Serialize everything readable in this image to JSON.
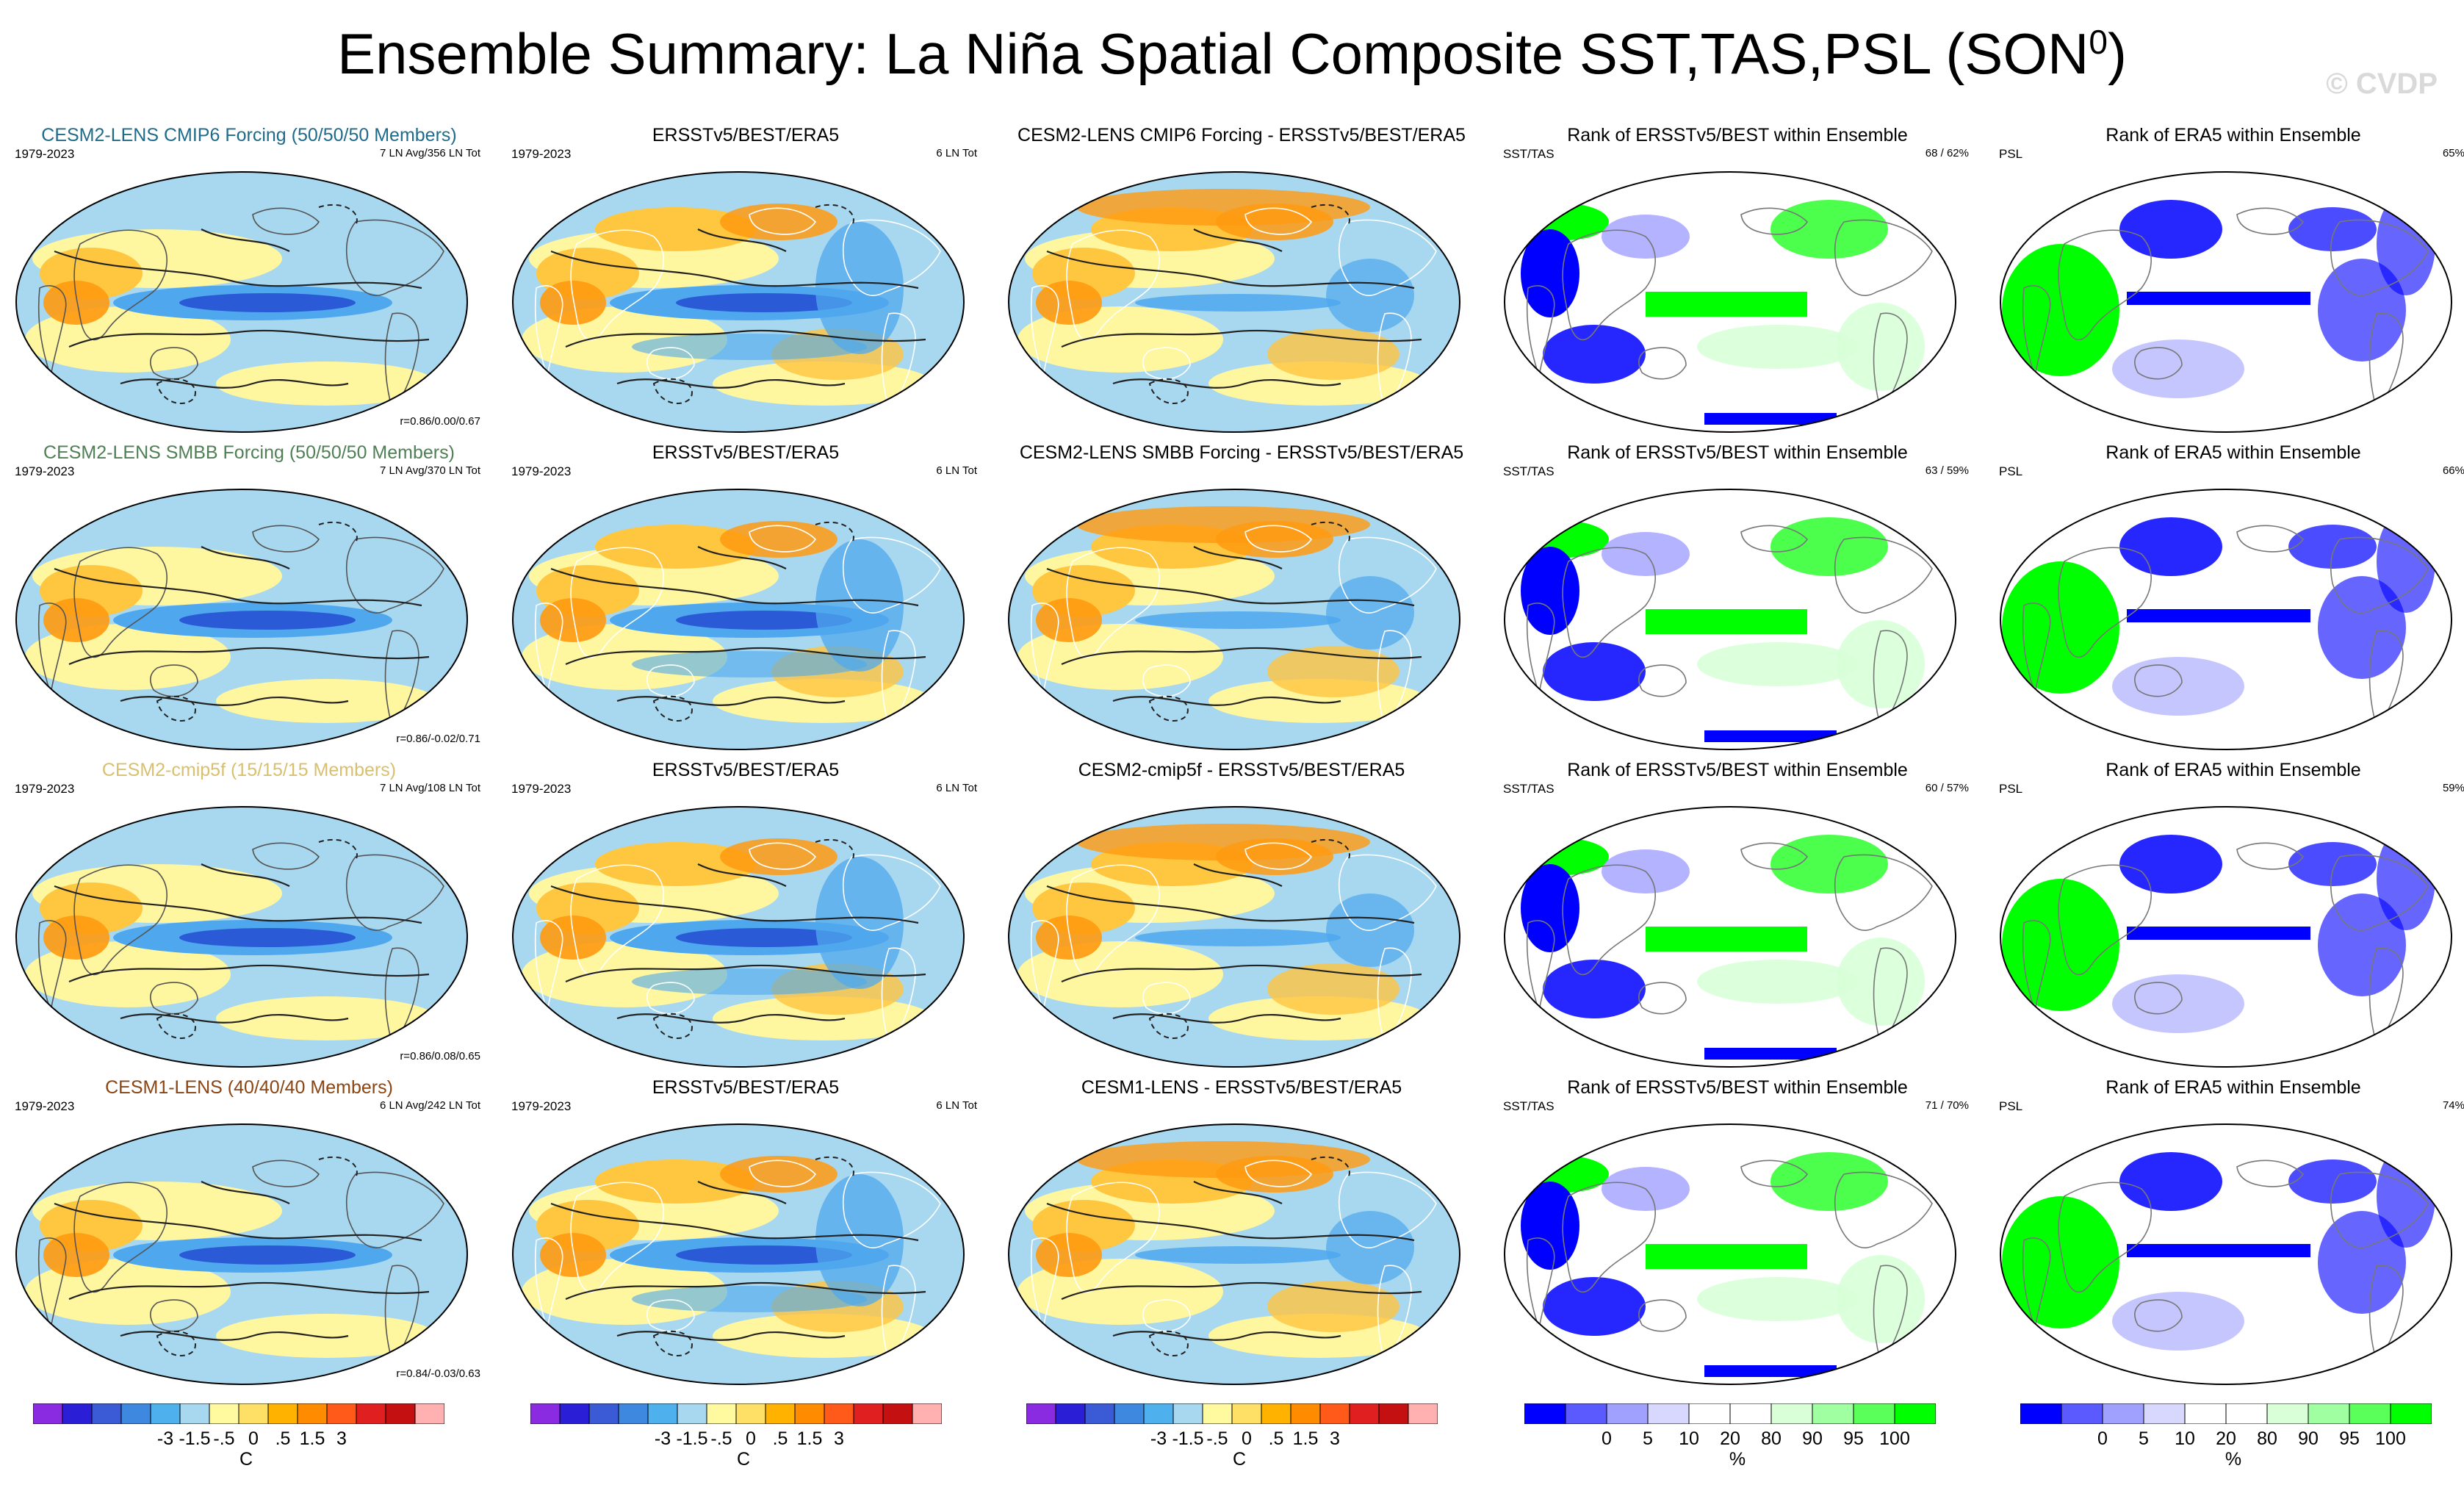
{
  "title": "Ensemble Summary: La Niña Spatial Composite SST,TAS,PSL (SON",
  "title_sup": "0",
  "title_close": ")",
  "watermark": "© CVDP",
  "rows": [
    {
      "ens_title": "CESM2-LENS CMIP6 Forcing (50/50/50 Members)",
      "ens_title_color": "#1f6b8a",
      "years": "1979-2023",
      "ens_info": "7 LN Avg/356 LN Tot",
      "corr": "r=0.86/0.00/0.67",
      "obs_title": "ERSSTv5/BEST/ERA5",
      "obs_years": "1979-2023",
      "obs_info": "6 LN Tot",
      "diff_title": "CESM2-LENS CMIP6 Forcing - ERSSTv5/BEST/ERA5",
      "rank_title": "Rank of ERSSTv5/BEST within Ensemble",
      "rank_label": "SST/TAS",
      "rank_pct": "68 /  62%",
      "psl_title": "Rank of ERA5 within Ensemble",
      "psl_label": "PSL",
      "psl_pct": "65%"
    },
    {
      "ens_title": "CESM2-LENS SMBB Forcing (50/50/50 Members)",
      "ens_title_color": "#4f7f55",
      "years": "1979-2023",
      "ens_info": "7 LN Avg/370 LN Tot",
      "corr": "r=0.86/-0.02/0.71",
      "obs_title": "ERSSTv5/BEST/ERA5",
      "obs_years": "1979-2023",
      "obs_info": "6 LN Tot",
      "diff_title": "CESM2-LENS SMBB Forcing - ERSSTv5/BEST/ERA5",
      "rank_title": "Rank of ERSSTv5/BEST within Ensemble",
      "rank_label": "SST/TAS",
      "rank_pct": "63 /  59%",
      "psl_title": "Rank of ERA5 within Ensemble",
      "psl_label": "PSL",
      "psl_pct": "66%"
    },
    {
      "ens_title": "CESM2-cmip5f (15/15/15 Members)",
      "ens_title_color": "#d8c070",
      "years": "1979-2023",
      "ens_info": "7 LN Avg/108 LN Tot",
      "corr": "r=0.86/0.08/0.65",
      "obs_title": "ERSSTv5/BEST/ERA5",
      "obs_years": "1979-2023",
      "obs_info": "6 LN Tot",
      "diff_title": "CESM2-cmip5f - ERSSTv5/BEST/ERA5",
      "rank_title": "Rank of ERSSTv5/BEST within Ensemble",
      "rank_label": "SST/TAS",
      "rank_pct": "60 /  57%",
      "psl_title": "Rank of ERA5 within Ensemble",
      "psl_label": "PSL",
      "psl_pct": "59%"
    },
    {
      "ens_title": "CESM1-LENS (40/40/40 Members)",
      "ens_title_color": "#8b4513",
      "years": "1979-2023",
      "ens_info": "6 LN Avg/242 LN Tot",
      "corr": "r=0.84/-0.03/0.63",
      "obs_title": "ERSSTv5/BEST/ERA5",
      "obs_years": "1979-2023",
      "obs_info": "6 LN Tot",
      "diff_title": "CESM1-LENS - ERSSTv5/BEST/ERA5",
      "rank_title": "Rank of ERSSTv5/BEST within Ensemble",
      "rank_label": "SST/TAS",
      "rank_pct": "71 /  70%",
      "psl_title": "Rank of ERA5 within Ensemble",
      "psl_label": "PSL",
      "psl_pct": "74%"
    }
  ],
  "colorbars": {
    "temp": {
      "unit": "C",
      "ticks": [
        "-3",
        "-1.5",
        "-.5",
        "0",
        ".5",
        "1.5",
        "3"
      ],
      "colors": [
        "#8a2be2",
        "#2a1fd6",
        "#3a5ad6",
        "#3f88e0",
        "#4fb0ee",
        "#a8d8f0",
        "#fffaa0",
        "#ffe066",
        "#ffb300",
        "#ff8c00",
        "#ff5a1a",
        "#e02020",
        "#c41010",
        "#ffb0b0"
      ]
    },
    "rank": {
      "unit": "%",
      "ticks": [
        "0",
        "5",
        "10",
        "20",
        "80",
        "90",
        "95",
        "100"
      ],
      "colors": [
        "#0000ff",
        "#5a5aff",
        "#a0a0ff",
        "#d8d8ff",
        "#ffffff",
        "#ffffff",
        "#d8ffd8",
        "#a0ffa0",
        "#5aff5a",
        "#00ff00"
      ]
    }
  },
  "colors": {
    "ocean_base": "#a8d8f0",
    "warm_light": "#fff6a0",
    "warm_mid": "#ffc640",
    "warm_strong": "#ff9a10",
    "cold_mid": "#4fa8ee",
    "cold_strong": "#2a5ad6",
    "rank_low": "#0000ff",
    "rank_high": "#00ff00"
  },
  "chart_data": [
    {
      "type": "heatmap",
      "description_role": "ensemble mean La Nina composite (SST/TAS shaded, PSL contours)",
      "panel_titles": [
        "CESM2-LENS CMIP6 Forcing (50/50/50 Members)",
        "CESM2-LENS SMBB Forcing (50/50/50 Members)",
        "CESM2-cmip5f (15/15/15 Members)",
        "CESM1-LENS (40/40/40 Members)"
      ],
      "colorbar_levels": [
        -3,
        -1.5,
        -0.5,
        0,
        0.5,
        1.5,
        3
      ],
      "unit": "C",
      "pattern_correlations": [
        "r=0.86/0.00/0.67",
        "r=0.86/-0.02/0.71",
        "r=0.86/0.08/0.65",
        "r=0.84/-0.03/0.63"
      ]
    },
    {
      "type": "heatmap",
      "description_role": "observed composite",
      "panel_title": "ERSSTv5/BEST/ERA5",
      "years": "1979-2023",
      "colorbar_levels": [
        -3,
        -1.5,
        -0.5,
        0,
        0.5,
        1.5,
        3
      ],
      "unit": "C"
    },
    {
      "type": "heatmap",
      "description_role": "ensemble minus observations",
      "colorbar_levels": [
        -3,
        -1.5,
        -0.5,
        0,
        0.5,
        1.5,
        3
      ],
      "unit": "C"
    },
    {
      "type": "heatmap",
      "description_role": "rank of observations within ensemble (SST/TAS)",
      "colorbar_levels": [
        0,
        5,
        10,
        20,
        80,
        90,
        95,
        100
      ],
      "unit": "%",
      "area_within_bounds": [
        "68 / 62%",
        "63 / 59%",
        "60 / 57%",
        "71 / 70%"
      ]
    },
    {
      "type": "heatmap",
      "description_role": "rank of ERA5 PSL within ensemble",
      "colorbar_levels": [
        0,
        5,
        10,
        20,
        80,
        90,
        95,
        100
      ],
      "unit": "%",
      "area_within_bounds": [
        "65%",
        "66%",
        "59%",
        "74%"
      ]
    }
  ]
}
